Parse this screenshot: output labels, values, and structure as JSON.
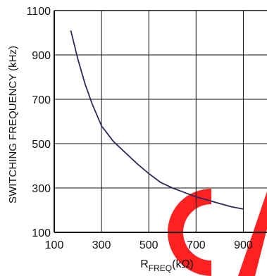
{
  "chart_data": {
    "type": "line",
    "title": "",
    "xlabel": "R",
    "xlabel_subscript": "FREQ",
    "xlabel_unit": "(kΩ)",
    "ylabel": "SWITCHING FREQUENCY (kHz)",
    "xlim": [
      100,
      1000
    ],
    "ylim": [
      100,
      1100
    ],
    "x_ticks": [
      100,
      300,
      500,
      700,
      900
    ],
    "y_ticks": [
      100,
      300,
      500,
      700,
      900,
      1100
    ],
    "x_tick_labels": [
      "100",
      "300",
      "500",
      "700",
      "900"
    ],
    "y_tick_labels": [
      "100",
      "300",
      "500",
      "700",
      "900",
      "1100"
    ],
    "grid": true,
    "series": [
      {
        "color": "#2b2a5e",
        "x": [
          170,
          200,
          230,
          260,
          300,
          350,
          400,
          450,
          500,
          550,
          600,
          650,
          700,
          750,
          800,
          850,
          900
        ],
        "y": [
          1010,
          880,
          770,
          680,
          580,
          510,
          460,
          410,
          365,
          325,
          300,
          280,
          260,
          245,
          230,
          215,
          205
        ]
      }
    ],
    "watermark_color": "#ff2020"
  }
}
